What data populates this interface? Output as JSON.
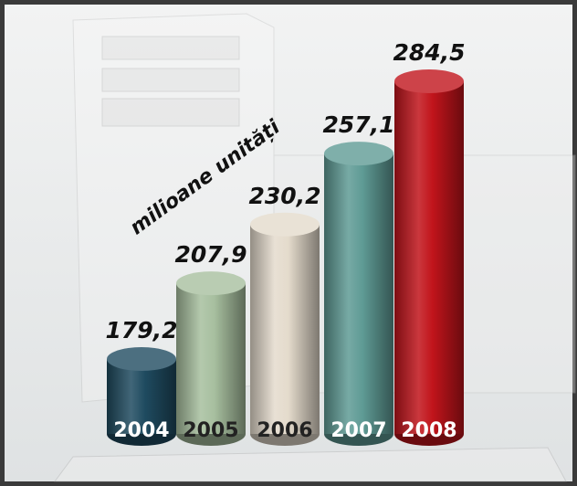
{
  "chart_data": {
    "type": "cylinder-bar",
    "annotation": "milioane unități",
    "categories": [
      "2004",
      "2005",
      "2006",
      "2007",
      "2008"
    ],
    "values": [
      179.2,
      207.9,
      230.2,
      257.1,
      284.5
    ],
    "value_labels": [
      "179,2",
      "207,9",
      "230,2",
      "257,1",
      "284,5"
    ],
    "colors": [
      "#1f4b60",
      "#a7bf9f",
      "#e4dbcc",
      "#5f9b95",
      "#c1141b"
    ]
  }
}
